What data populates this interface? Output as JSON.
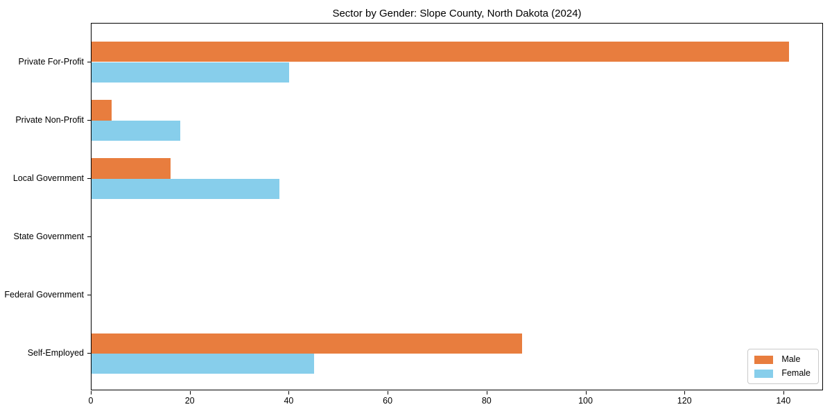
{
  "chart": {
    "title": "Sector by Gender: Slope County, North Dakota (2024)"
  },
  "chart_data": {
    "type": "bar",
    "orientation": "horizontal",
    "title": "Sector by Gender: Slope County, North Dakota (2024)",
    "xlabel": "",
    "ylabel": "",
    "categories": [
      "Private For-Profit",
      "Private Non-Profit",
      "Local Government",
      "State Government",
      "Federal Government",
      "Self-Employed"
    ],
    "series": [
      {
        "name": "Male",
        "color": "#E87D3E",
        "values": [
          141,
          4,
          16,
          0,
          0,
          87
        ]
      },
      {
        "name": "Female",
        "color": "#87CEEB",
        "values": [
          40,
          18,
          38,
          0,
          0,
          45
        ]
      }
    ],
    "xlim": [
      0,
      148
    ],
    "xticks": [
      0,
      20,
      40,
      60,
      80,
      100,
      120,
      140
    ],
    "grid": false,
    "legend_position": "lower right",
    "axis_color": "#000000"
  }
}
